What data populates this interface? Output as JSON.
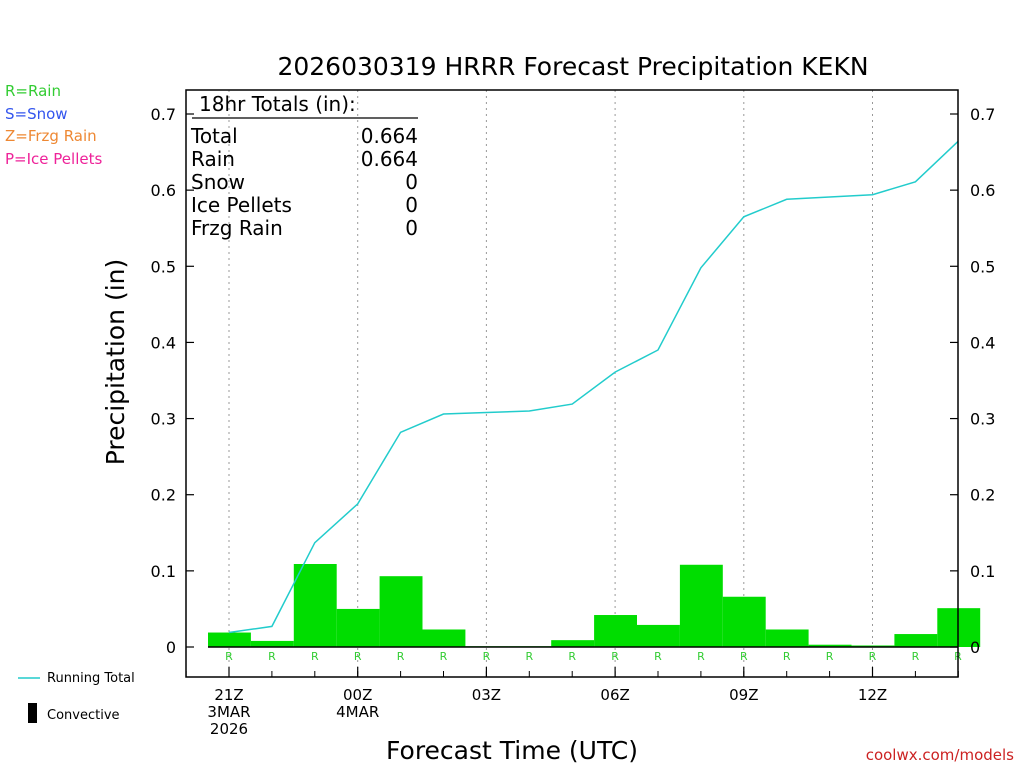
{
  "type_legend": [
    {
      "label": "R=Rain",
      "color": "#33cc33"
    },
    {
      "label": "S=Snow",
      "color": "#3355ee"
    },
    {
      "label": "Z=Frzg Rain",
      "color": "#ee8833"
    },
    {
      "label": "P=Ice Pellets",
      "color": "#ee2299"
    }
  ],
  "totals_box": {
    "heading": "18hr Totals (in):",
    "rows": [
      {
        "label": "Total",
        "value": "0.664"
      },
      {
        "label": "Rain",
        "value": "0.664"
      },
      {
        "label": "Snow",
        "value": "0"
      },
      {
        "label": "Ice Pellets",
        "value": "0"
      },
      {
        "label": "Frzg Rain",
        "value": "0"
      }
    ]
  },
  "bottom_legend": {
    "running_total": "Running Total",
    "convective": "Convective"
  },
  "credit": "coolwx.com/models",
  "colors": {
    "bar": "#00dd00",
    "running_total": "#22cccc",
    "rain_marker": "#33cc33",
    "credit": "#cc2222"
  },
  "chart_data": {
    "type": "bar",
    "title": "2026030319 HRRR Forecast Precipitation KEKN",
    "xlabel": "Forecast Time (UTC)",
    "ylabel": "Precipitation (in)",
    "ylim": [
      -0.04,
      0.72
    ],
    "yticks": [
      0,
      0.1,
      0.2,
      0.3,
      0.4,
      0.5,
      0.6,
      0.7
    ],
    "ytick_labels": [
      "0",
      "0.1",
      "0.2",
      "0.3",
      "0.4",
      "0.5",
      "0.6",
      "0.7"
    ],
    "grid": "vertical dotted at labeled hours",
    "x_hours": [
      20,
      21,
      22,
      23,
      24,
      25,
      26,
      27,
      28,
      29,
      30,
      31,
      32,
      33,
      34,
      35,
      36,
      37,
      38
    ],
    "x_ticks": [
      {
        "hour": 21,
        "lines": [
          "21Z",
          "3MAR",
          "2026"
        ]
      },
      {
        "hour": 24,
        "lines": [
          "00Z",
          "4MAR"
        ]
      },
      {
        "hour": 27,
        "lines": [
          "03Z"
        ]
      },
      {
        "hour": 30,
        "lines": [
          "06Z"
        ]
      },
      {
        "hour": 33,
        "lines": [
          "09Z"
        ]
      },
      {
        "hour": 36,
        "lines": [
          "12Z"
        ]
      }
    ],
    "series": [
      {
        "name": "Hourly Precipitation",
        "kind": "bar",
        "values": [
          0.019,
          0.008,
          0.109,
          0.05,
          0.093,
          0.023,
          0.001,
          0.001,
          0.009,
          0.042,
          0.029,
          0.108,
          0.066,
          0.023,
          0.003,
          0.002,
          0.017,
          0.051
        ]
      },
      {
        "name": "Running Total",
        "kind": "line",
        "values": [
          0.019,
          0.027,
          0.137,
          0.188,
          0.282,
          0.306,
          0.308,
          0.31,
          0.319,
          0.361,
          0.39,
          0.498,
          0.565,
          0.588,
          0.591,
          0.594,
          0.611,
          0.664
        ]
      }
    ],
    "precip_type_labels": [
      "R",
      "R",
      "R",
      "R",
      "R",
      "R",
      "R",
      "R",
      "R",
      "R",
      "R",
      "R",
      "R",
      "R",
      "R",
      "R",
      "R",
      "R"
    ]
  }
}
